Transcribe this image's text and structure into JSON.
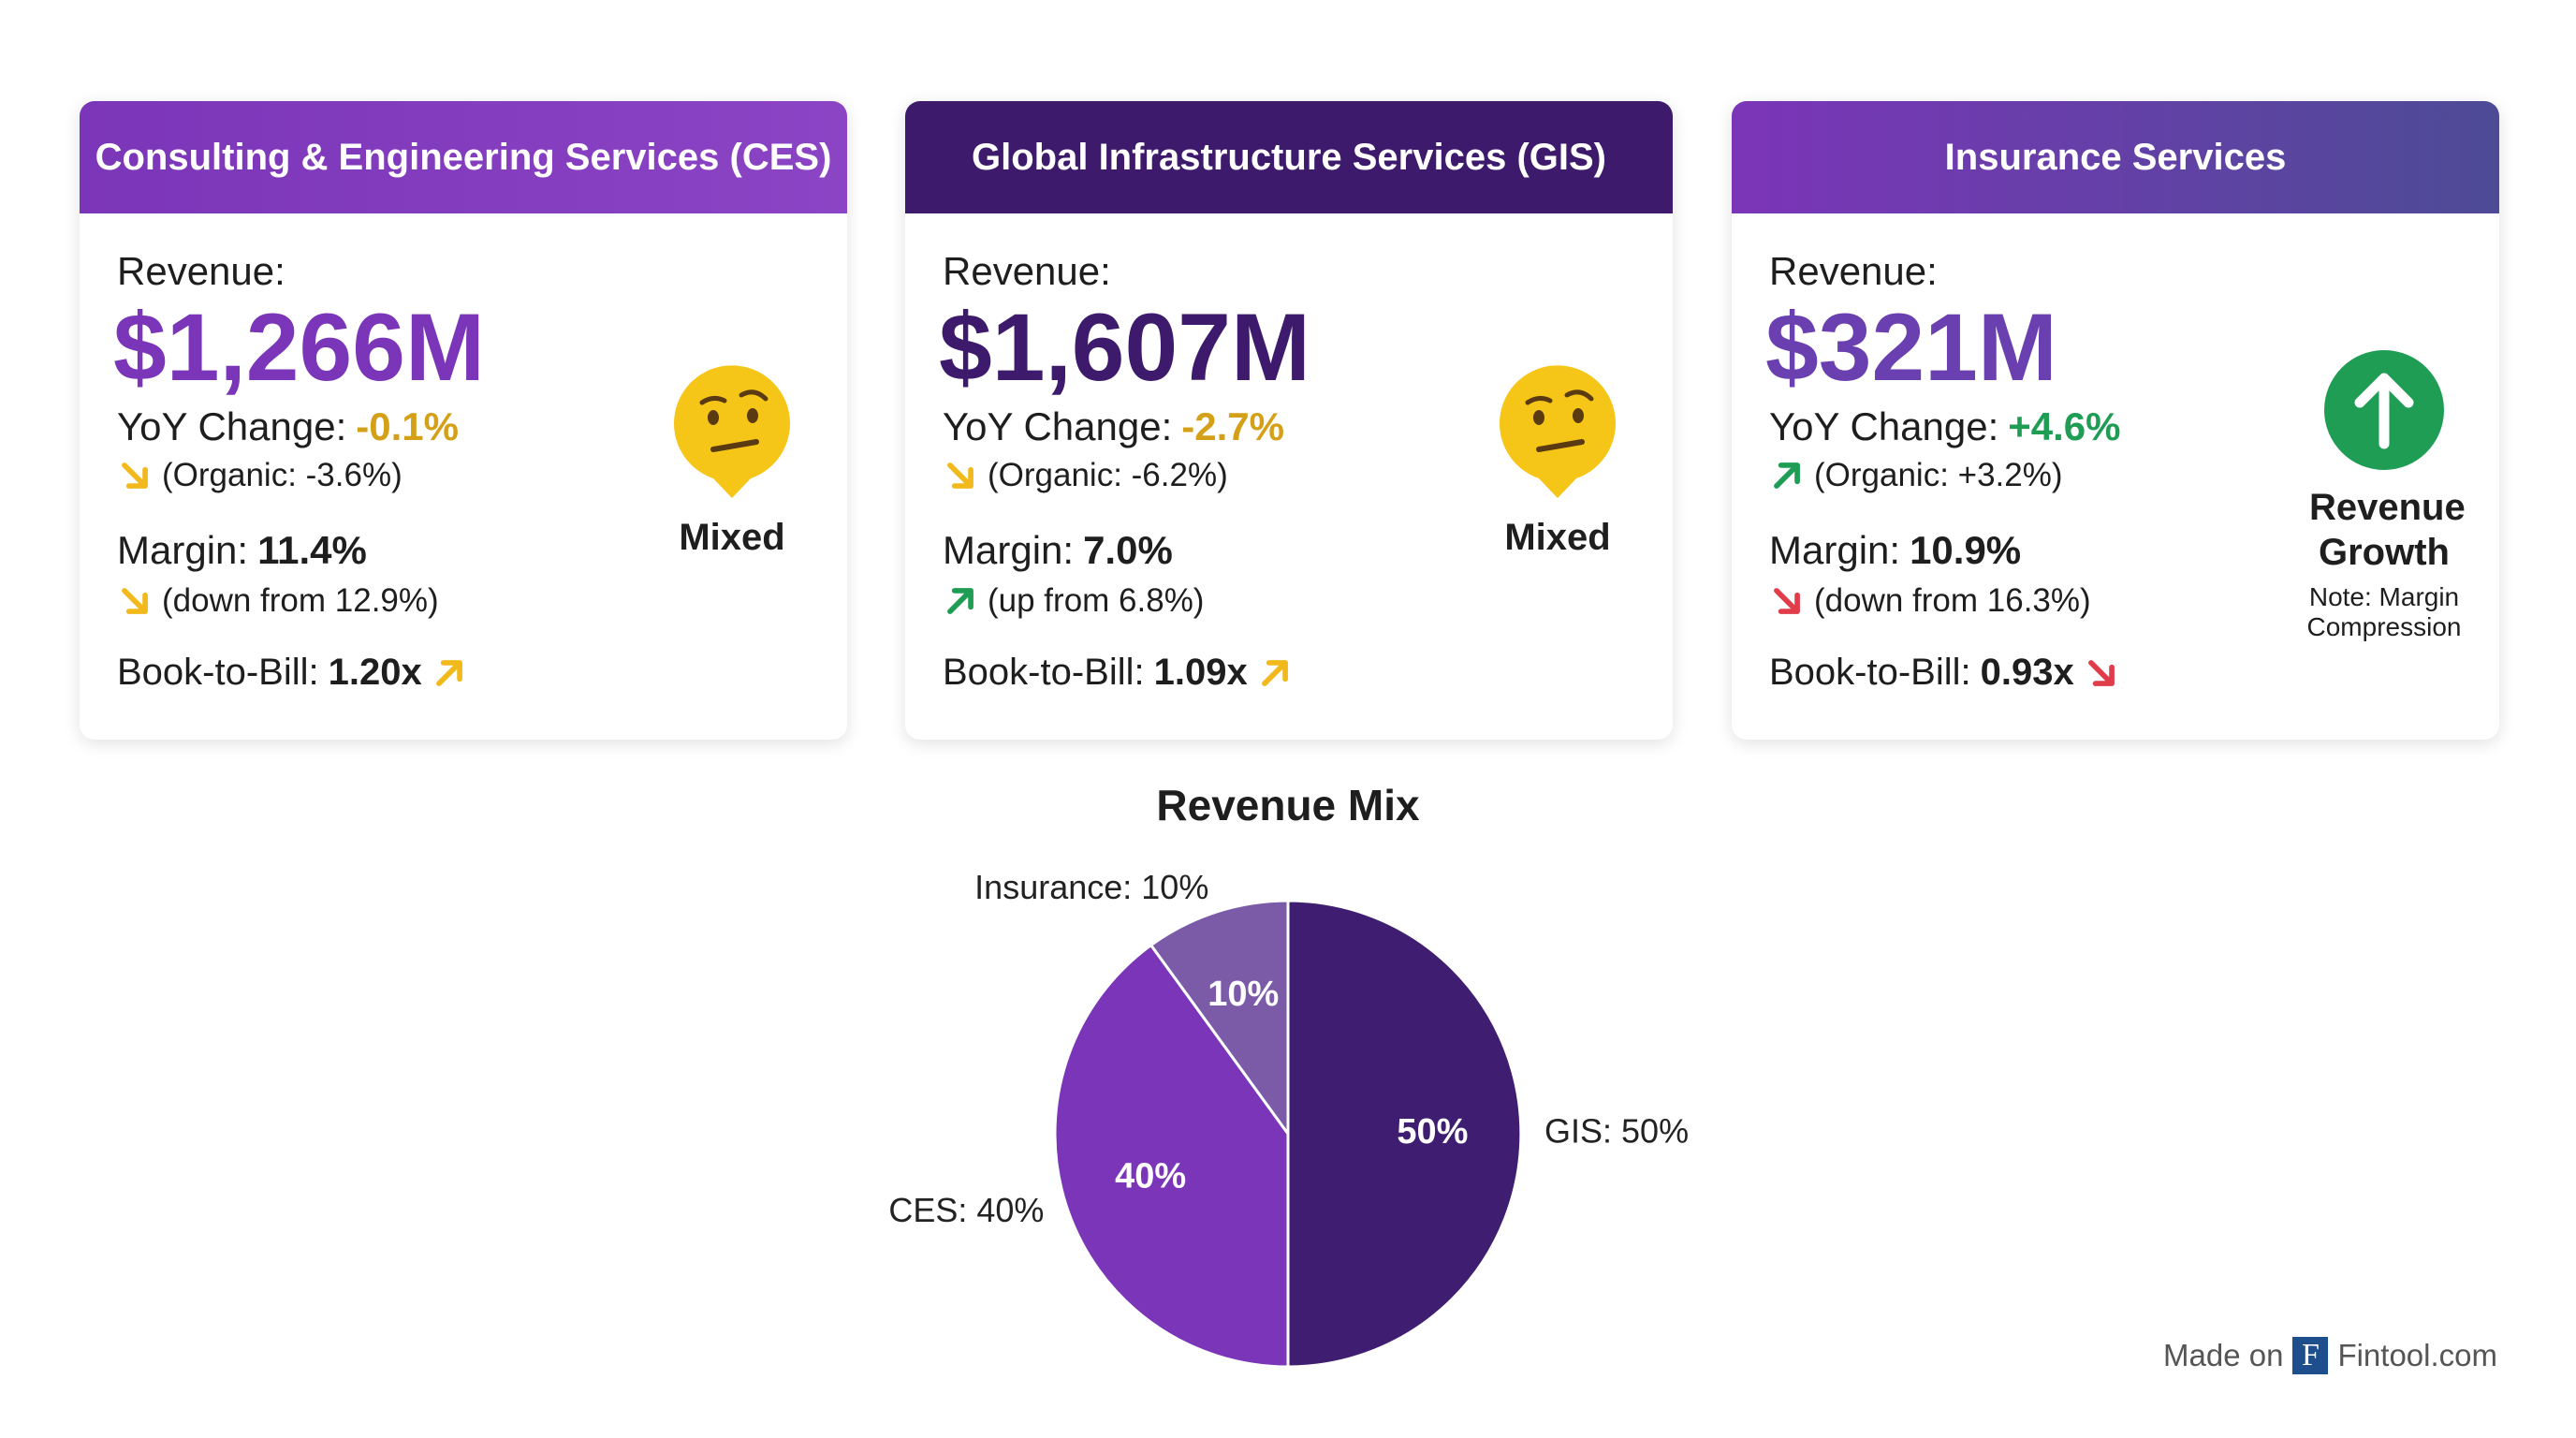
{
  "cards": [
    {
      "title": "Consulting & Engineering Services (CES)",
      "header_color": [
        "#7b35b8",
        "#8b44c4"
      ],
      "value_color": "#7b35b8",
      "revenue_label": "Revenue:",
      "revenue": "$1,266M",
      "yoy_label": "YoY Change:",
      "yoy": "-0.1%",
      "yoy_color": "#d4a017",
      "organic": "(Organic: -3.6%)",
      "organic_trend": "down",
      "organic_color": "#f2b91c",
      "margin_label": "Margin:",
      "margin": "11.4%",
      "margin_note": "(down from 12.9%)",
      "margin_trend": "down",
      "margin_color": "#f2b91c",
      "btb_label": "Book-to-Bill:",
      "btb": "1.20x",
      "btb_trend": "up",
      "btb_color": "#f2b91c",
      "verdict": "Mixed",
      "verdict_icon": "thinking"
    },
    {
      "title": "Global Infrastructure Services (GIS)",
      "header_color": [
        "#3d1a6b",
        "#3d1a6b"
      ],
      "value_color": "#3d1a6b",
      "revenue_label": "Revenue:",
      "revenue": "$1,607M",
      "yoy_label": "YoY Change:",
      "yoy": "-2.7%",
      "yoy_color": "#d4a017",
      "organic": "(Organic: -6.2%)",
      "organic_trend": "down",
      "organic_color": "#f2b91c",
      "margin_label": "Margin:",
      "margin": "7.0%",
      "margin_note": "(up from 6.8%)",
      "margin_trend": "up",
      "margin_color": "#1f9d55",
      "btb_label": "Book-to-Bill:",
      "btb": "1.09x",
      "btb_trend": "up",
      "btb_color": "#f2b91c",
      "verdict": "Mixed",
      "verdict_icon": "thinking"
    },
    {
      "title": "Insurance Services",
      "header_color": [
        "#7b35b8",
        "#4d4b96"
      ],
      "value_color": "#6a3fb0",
      "revenue_label": "Revenue:",
      "revenue": "$321M",
      "yoy_label": "YoY Change:",
      "yoy": "+4.6%",
      "yoy_color": "#1f9d55",
      "organic": "(Organic: +3.2%)",
      "organic_trend": "up",
      "organic_color": "#1f9d55",
      "margin_label": "Margin:",
      "margin": "10.9%",
      "margin_note": "(down from 16.3%)",
      "margin_trend": "down",
      "margin_color": "#e03c4a",
      "btb_label": "Book-to-Bill:",
      "btb": "0.93x",
      "btb_trend": "down",
      "btb_color": "#e03c4a",
      "verdict": "Revenue Growth",
      "verdict_icon": "growth",
      "note": "Note: Margin Compression"
    }
  ],
  "chart_data": {
    "type": "pie",
    "title": "Revenue Mix",
    "categories": [
      "GIS",
      "CES",
      "Insurance"
    ],
    "values": [
      50,
      40,
      10
    ],
    "value_labels": [
      "50%",
      "40%",
      "10%"
    ],
    "outer_labels": [
      "GIS: 50%",
      "CES: 40%",
      "Insurance: 10%"
    ],
    "colors": [
      "#3f1d70",
      "#7b35b8",
      "#7b5aa8"
    ]
  },
  "footer": {
    "prefix": "Made on",
    "logo": "F",
    "brand": "Fintool.com"
  }
}
